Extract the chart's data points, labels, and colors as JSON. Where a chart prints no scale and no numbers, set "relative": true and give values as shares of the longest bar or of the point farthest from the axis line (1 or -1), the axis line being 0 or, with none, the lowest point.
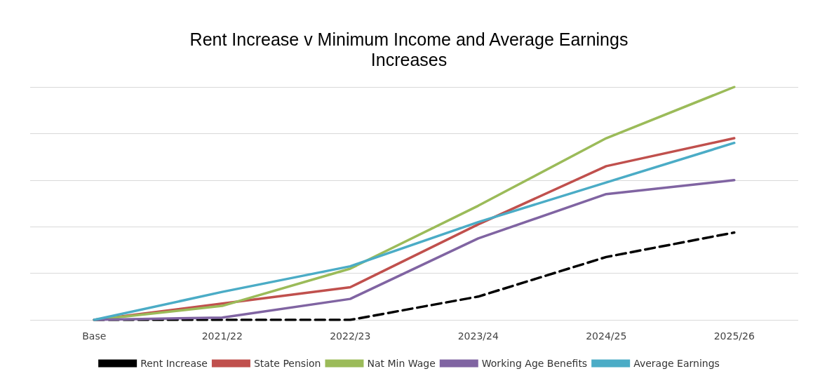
{
  "chart_data": {
    "type": "line",
    "title": "Rent Increase v Minimum Income and Average Earnings\nIncreases",
    "relative": true,
    "grid": "y",
    "legend": "bottom",
    "marker": "none",
    "categories": [
      "Base",
      "2021/22",
      "2022/23",
      "2023/24",
      "2024/25",
      "2025/26"
    ],
    "series": [
      {
        "name": "Rent Increase",
        "color": "#000000",
        "line_style": "dashed",
        "values": [
          0,
          0,
          0,
          0.1,
          0.27,
          0.375
        ]
      },
      {
        "name": "State Pension",
        "color": "#c0504d",
        "values": [
          0,
          0.07,
          0.14,
          0.41,
          0.66,
          0.78
        ]
      },
      {
        "name": "Nat Min Wage",
        "color": "#9bbb59",
        "values": [
          0,
          0.06,
          0.22,
          0.49,
          0.78,
          1
        ]
      },
      {
        "name": "Working Age Benefits",
        "color": "#8064a2",
        "values": [
          0,
          0.01,
          0.09,
          0.35,
          0.54,
          0.6
        ]
      },
      {
        "name": "Average Earnings",
        "color": "#4bacc6",
        "values": [
          0,
          0.12,
          0.23,
          0.42,
          0.59,
          0.76
        ]
      }
    ]
  }
}
